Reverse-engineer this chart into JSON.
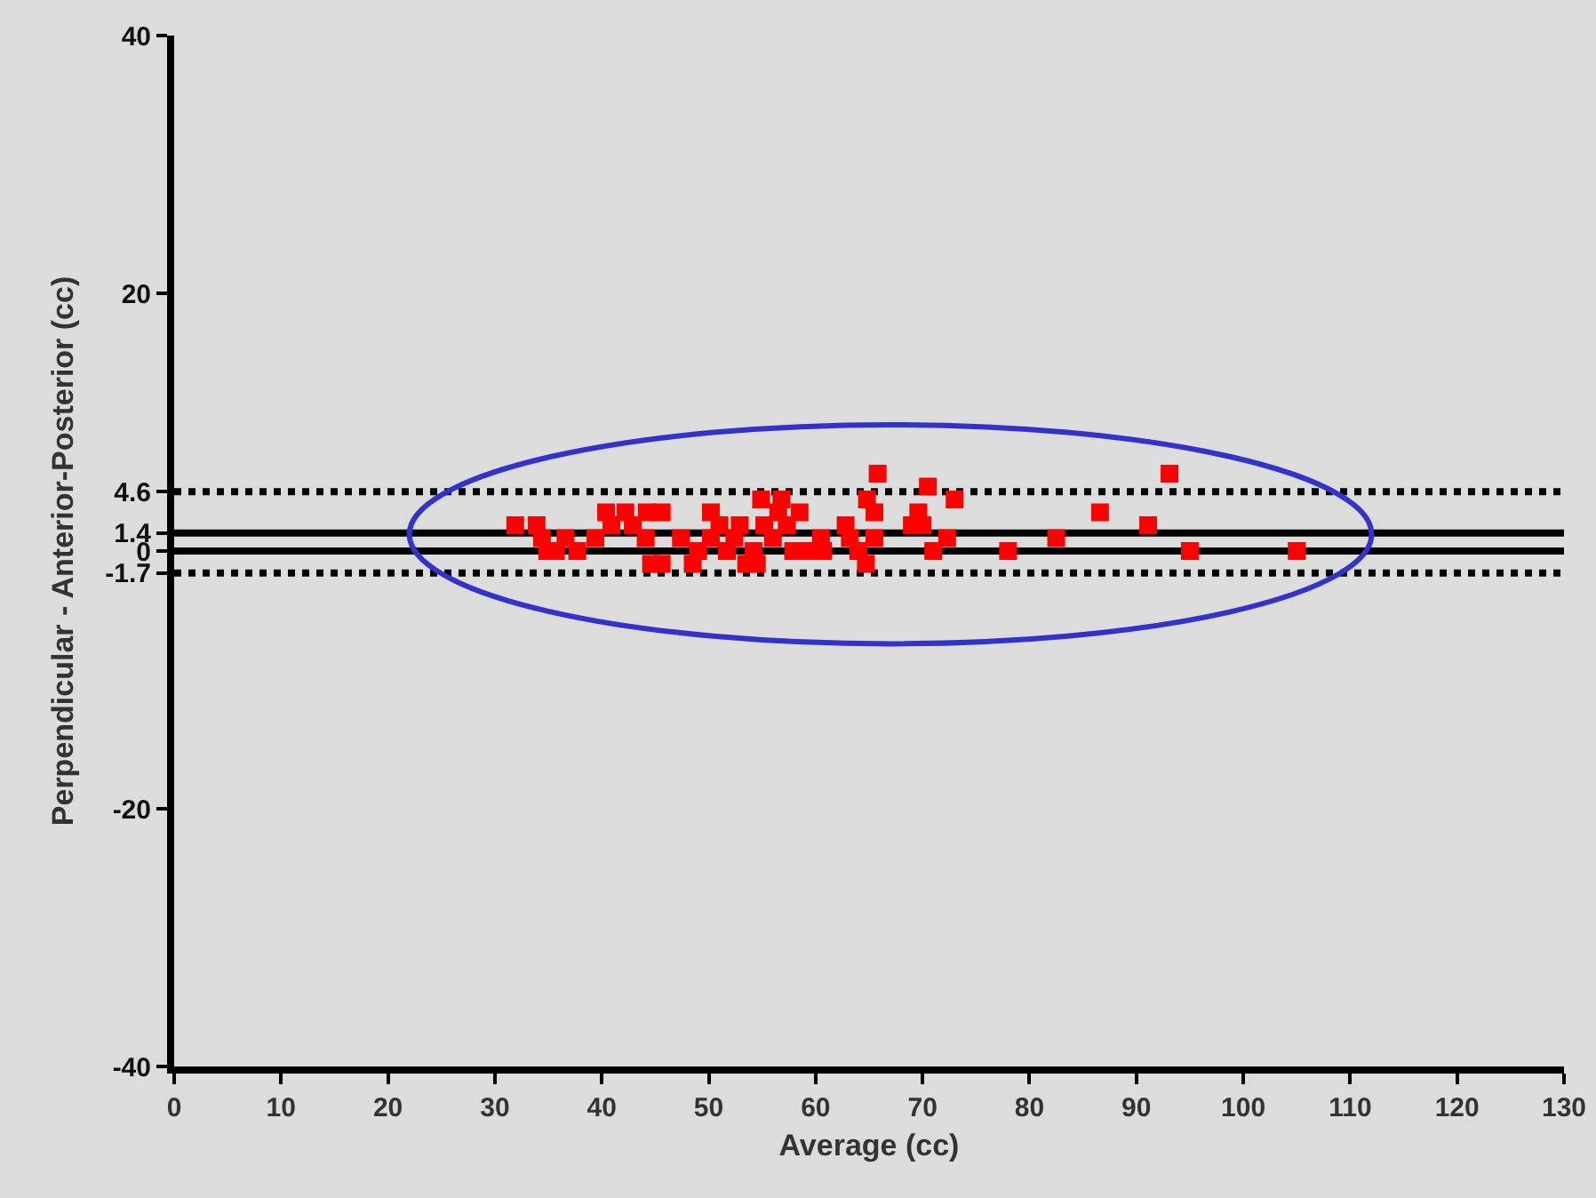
{
  "chart_data": {
    "type": "scatter",
    "xlabel": "Average (cc)",
    "ylabel": "Perpendicular - Anterior-Posterior (cc)",
    "x": [
      31.9,
      33.9,
      34.4,
      34.9,
      35.7,
      36.6,
      37.7,
      39.4,
      40.4,
      40.9,
      42.2,
      42.9,
      44.1,
      44.2,
      44.6,
      45.6,
      45.6,
      47.4,
      48.5,
      49.0,
      50.2,
      50.2,
      51.0,
      51.7,
      52.4,
      52.9,
      53.5,
      54.2,
      54.5,
      54.9,
      55.2,
      56.0,
      56.5,
      56.8,
      57.3,
      57.9,
      58.5,
      59.3,
      60.5,
      60.7,
      62.8,
      63.2,
      64.0,
      64.7,
      64.8,
      65.5,
      65.5,
      65.8,
      69.0,
      69.6,
      70.0,
      70.5,
      71.0,
      72.3,
      73.0,
      78.0,
      82.5,
      86.6,
      91.1,
      93.1,
      95.0,
      105.0
    ],
    "series": [
      {
        "color": "#ff0000",
        "values": [
          2,
          2,
          1,
          0,
          0,
          1,
          0,
          1,
          3,
          2,
          3,
          2,
          1,
          3,
          -1,
          3,
          -1,
          1,
          -1,
          0,
          3,
          1,
          2,
          0,
          1,
          2,
          -1,
          0,
          -1,
          4,
          2,
          1,
          3,
          4,
          2,
          0,
          3,
          0,
          1,
          0,
          2,
          1,
          0,
          -1,
          4,
          3,
          1,
          6,
          2,
          3,
          2,
          5,
          0,
          1,
          4,
          0,
          1,
          3,
          2,
          6,
          0,
          0
        ]
      }
    ],
    "marker": "square",
    "grid": false,
    "xlim": [
      0,
      130
    ],
    "xticks": [
      0,
      10,
      20,
      30,
      40,
      50,
      60,
      70,
      80,
      90,
      100,
      110,
      120,
      130
    ],
    "ylim": [
      -40,
      40
    ],
    "yticks": [
      -40,
      -20,
      -1.7,
      0,
      1.4,
      4.6,
      20,
      40
    ],
    "ref_lines": [
      {
        "axis": "y",
        "value": 4.6,
        "line_style": "dotted",
        "color": "#000000"
      },
      {
        "axis": "y",
        "value": 1.4,
        "line_style": "solid",
        "color": "#000000"
      },
      {
        "axis": "y",
        "value": 0,
        "line_style": "solid",
        "color": "#000000"
      },
      {
        "axis": "y",
        "value": -1.7,
        "line_style": "dotted",
        "color": "#000000"
      }
    ]
  }
}
